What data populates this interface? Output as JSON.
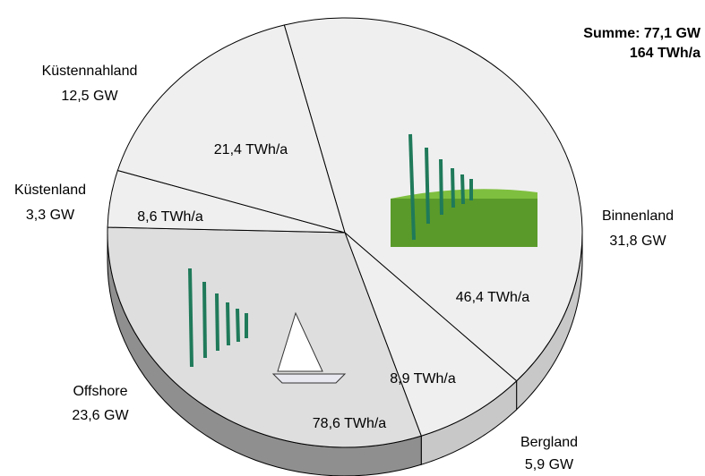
{
  "chart_data": {
    "type": "pie",
    "categories": [
      "Binnenland",
      "Bergland",
      "Offshore",
      "Küstenland",
      "Küstennahland"
    ],
    "values": [
      31.8,
      5.9,
      23.6,
      3.3,
      12.5
    ],
    "value_labels": [
      "31,8 GW",
      "5,9 GW",
      "23,6 GW",
      "3,3 GW",
      "12,5 GW"
    ],
    "energy_values": [
      46.4,
      8.9,
      78.6,
      8.6,
      21.4
    ],
    "energy_labels": [
      "46,4 TWh/a",
      "8,9 TWh/a",
      "78,6 TWh/a",
      "8,6 TWh/a",
      "21,4 TWh/a"
    ],
    "colors": [
      "#efefef",
      "#efefef",
      "#dedede",
      "#efefef",
      "#efefef"
    ],
    "side_colors": [
      "#c8c8c8",
      "#c8c8c8",
      "#8f8f8f",
      "#c8c8c8",
      "#c8c8c8"
    ],
    "total_labels": [
      "Summe: 77,1 GW",
      "164 TWh/a"
    ]
  }
}
